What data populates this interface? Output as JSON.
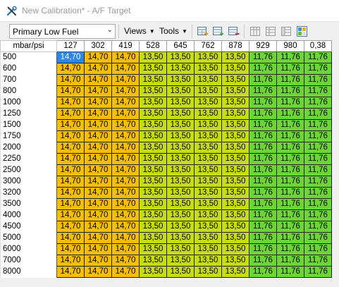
{
  "window": {
    "title": "New Calibration* - A/F Target",
    "icon": "wrench-screwdriver-icon"
  },
  "toolbar": {
    "map_select": "Primary Low Fuel",
    "views_label": "Views",
    "tools_label": "Tools",
    "icons": [
      "add-table-icon",
      "add-row-icon",
      "remove-row-icon",
      "grid-columns-icon",
      "grid-rows-icon",
      "grid-cells-icon",
      "graph-view-icon"
    ]
  },
  "table": {
    "corner_label": "mbar/psi",
    "columns": [
      "127",
      "302",
      "419",
      "528",
      "645",
      "762",
      "878",
      "929",
      "980",
      "0,38"
    ],
    "rows": [
      {
        "label": "500",
        "values": [
          "14,70",
          "14,70",
          "14,70",
          "13,50",
          "13,50",
          "13,50",
          "13,50",
          "11,76",
          "11,76",
          "11,76"
        ]
      },
      {
        "label": "600",
        "values": [
          "14,70",
          "14,70",
          "14,70",
          "13,50",
          "13,50",
          "13,50",
          "13,50",
          "11,76",
          "11,76",
          "11,76"
        ]
      },
      {
        "label": "700",
        "values": [
          "14,70",
          "14,70",
          "14,70",
          "13,50",
          "13,50",
          "13,50",
          "13,50",
          "11,76",
          "11,76",
          "11,76"
        ]
      },
      {
        "label": "800",
        "values": [
          "14,70",
          "14,70",
          "14,70",
          "13,50",
          "13,50",
          "13,50",
          "13,50",
          "11,76",
          "11,76",
          "11,76"
        ]
      },
      {
        "label": "1000",
        "values": [
          "14,70",
          "14,70",
          "14,70",
          "13,50",
          "13,50",
          "13,50",
          "13,50",
          "11,76",
          "11,76",
          "11,76"
        ]
      },
      {
        "label": "1250",
        "values": [
          "14,70",
          "14,70",
          "14,70",
          "13,50",
          "13,50",
          "13,50",
          "13,50",
          "11,76",
          "11,76",
          "11,76"
        ]
      },
      {
        "label": "1500",
        "values": [
          "14,70",
          "14,70",
          "14,70",
          "13,50",
          "13,50",
          "13,50",
          "13,50",
          "11,76",
          "11,76",
          "11,76"
        ]
      },
      {
        "label": "1750",
        "values": [
          "14,70",
          "14,70",
          "14,70",
          "13,50",
          "13,50",
          "13,50",
          "13,50",
          "11,76",
          "11,76",
          "11,76"
        ]
      },
      {
        "label": "2000",
        "values": [
          "14,70",
          "14,70",
          "14,70",
          "13,50",
          "13,50",
          "13,50",
          "13,50",
          "11,76",
          "11,76",
          "11,76"
        ]
      },
      {
        "label": "2250",
        "values": [
          "14,70",
          "14,70",
          "14,70",
          "13,50",
          "13,50",
          "13,50",
          "13,50",
          "11,76",
          "11,76",
          "11,76"
        ]
      },
      {
        "label": "2500",
        "values": [
          "14,70",
          "14,70",
          "14,70",
          "13,50",
          "13,50",
          "13,50",
          "13,50",
          "11,76",
          "11,76",
          "11,76"
        ]
      },
      {
        "label": "3000",
        "values": [
          "14,70",
          "14,70",
          "14,70",
          "13,50",
          "13,50",
          "13,50",
          "13,50",
          "11,76",
          "11,76",
          "11,76"
        ]
      },
      {
        "label": "3200",
        "values": [
          "14,70",
          "14,70",
          "14,70",
          "13,50",
          "13,50",
          "13,50",
          "13,50",
          "11,76",
          "11,76",
          "11,76"
        ]
      },
      {
        "label": "3500",
        "values": [
          "14,70",
          "14,70",
          "14,70",
          "13,50",
          "13,50",
          "13,50",
          "13,50",
          "11,76",
          "11,76",
          "11,76"
        ]
      },
      {
        "label": "4000",
        "values": [
          "14,70",
          "14,70",
          "14,70",
          "13,50",
          "13,50",
          "13,50",
          "13,50",
          "11,76",
          "11,76",
          "11,76"
        ]
      },
      {
        "label": "4500",
        "values": [
          "14,70",
          "14,70",
          "14,70",
          "13,50",
          "13,50",
          "13,50",
          "13,50",
          "11,76",
          "11,76",
          "11,76"
        ]
      },
      {
        "label": "5000",
        "values": [
          "14,70",
          "14,70",
          "14,70",
          "13,50",
          "13,50",
          "13,50",
          "13,50",
          "11,76",
          "11,76",
          "11,76"
        ]
      },
      {
        "label": "6000",
        "values": [
          "14,70",
          "14,70",
          "14,70",
          "13,50",
          "13,50",
          "13,50",
          "13,50",
          "11,76",
          "11,76",
          "11,76"
        ]
      },
      {
        "label": "7000",
        "values": [
          "14,70",
          "14,70",
          "14,70",
          "13,50",
          "13,50",
          "13,50",
          "13,50",
          "11,76",
          "11,76",
          "11,76"
        ]
      },
      {
        "label": "8000",
        "values": [
          "14,70",
          "14,70",
          "14,70",
          "13,50",
          "13,50",
          "13,50",
          "13,50",
          "11,76",
          "11,76",
          "11,76"
        ]
      }
    ],
    "colors": {
      "14,70": "#f5be00",
      "13,50": "#c6dd16",
      "11,76": "#6cd636",
      "selected": "#2a86e8"
    }
  }
}
